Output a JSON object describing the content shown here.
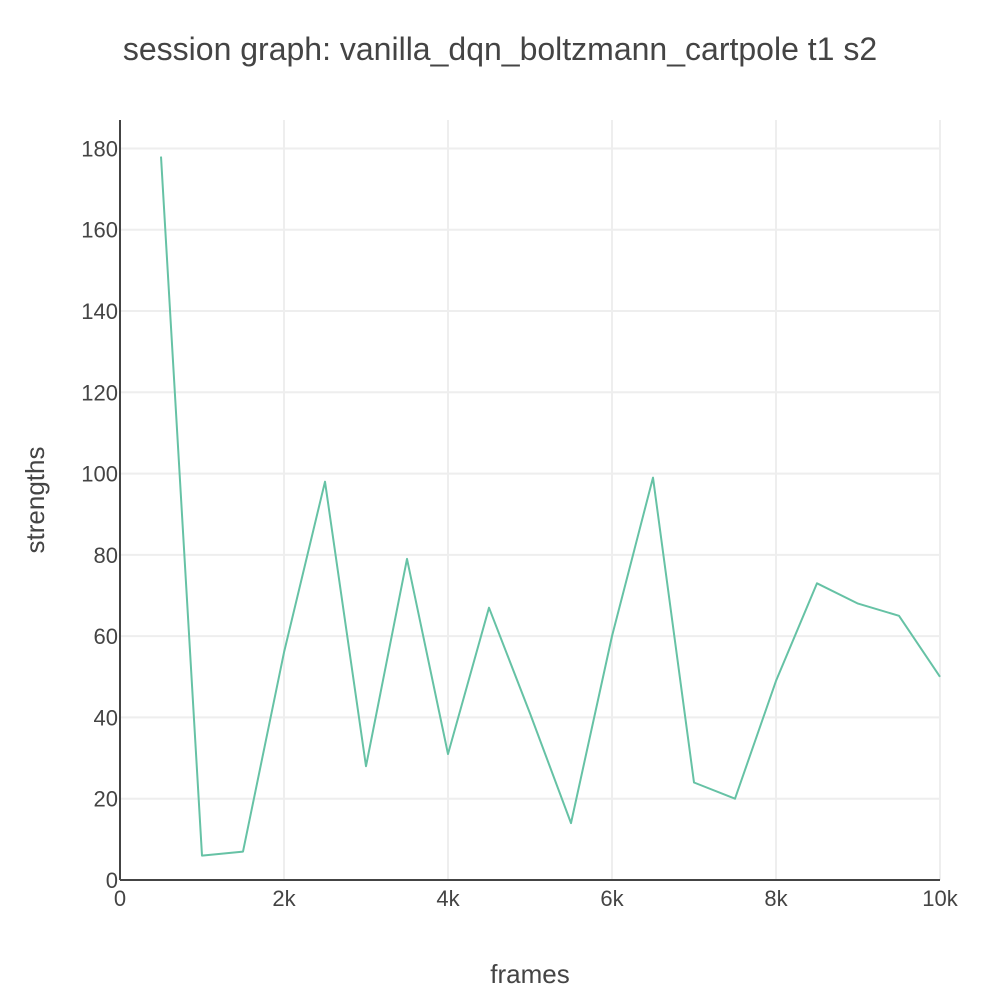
{
  "chart_data": {
    "type": "line",
    "title": "session graph: vanilla_dqn_boltzmann_cartpole t1 s2",
    "xlabel": "frames",
    "ylabel": "strengths",
    "xlim": [
      0,
      10000
    ],
    "ylim": [
      0,
      187
    ],
    "x_ticks": [
      {
        "value": 0,
        "label": "0"
      },
      {
        "value": 2000,
        "label": "2k"
      },
      {
        "value": 4000,
        "label": "4k"
      },
      {
        "value": 6000,
        "label": "6k"
      },
      {
        "value": 8000,
        "label": "8k"
      },
      {
        "value": 10000,
        "label": "10k"
      }
    ],
    "y_ticks": [
      {
        "value": 0,
        "label": "0"
      },
      {
        "value": 20,
        "label": "20"
      },
      {
        "value": 40,
        "label": "40"
      },
      {
        "value": 60,
        "label": "60"
      },
      {
        "value": 80,
        "label": "80"
      },
      {
        "value": 100,
        "label": "100"
      },
      {
        "value": 120,
        "label": "120"
      },
      {
        "value": 140,
        "label": "140"
      },
      {
        "value": 160,
        "label": "160"
      },
      {
        "value": 180,
        "label": "180"
      }
    ],
    "grid": true,
    "series": [
      {
        "color": "#66c2a5",
        "x": [
          500,
          1000,
          1500,
          2000,
          2500,
          3000,
          3500,
          4000,
          4500,
          5000,
          5500,
          6000,
          6500,
          7000,
          7500,
          8000,
          8500,
          9000,
          9500,
          10000
        ],
        "y": [
          178,
          6,
          7,
          56,
          98,
          28,
          79,
          31,
          67,
          41,
          14,
          60,
          99,
          24,
          20,
          49,
          73,
          68,
          65,
          50
        ]
      }
    ]
  }
}
